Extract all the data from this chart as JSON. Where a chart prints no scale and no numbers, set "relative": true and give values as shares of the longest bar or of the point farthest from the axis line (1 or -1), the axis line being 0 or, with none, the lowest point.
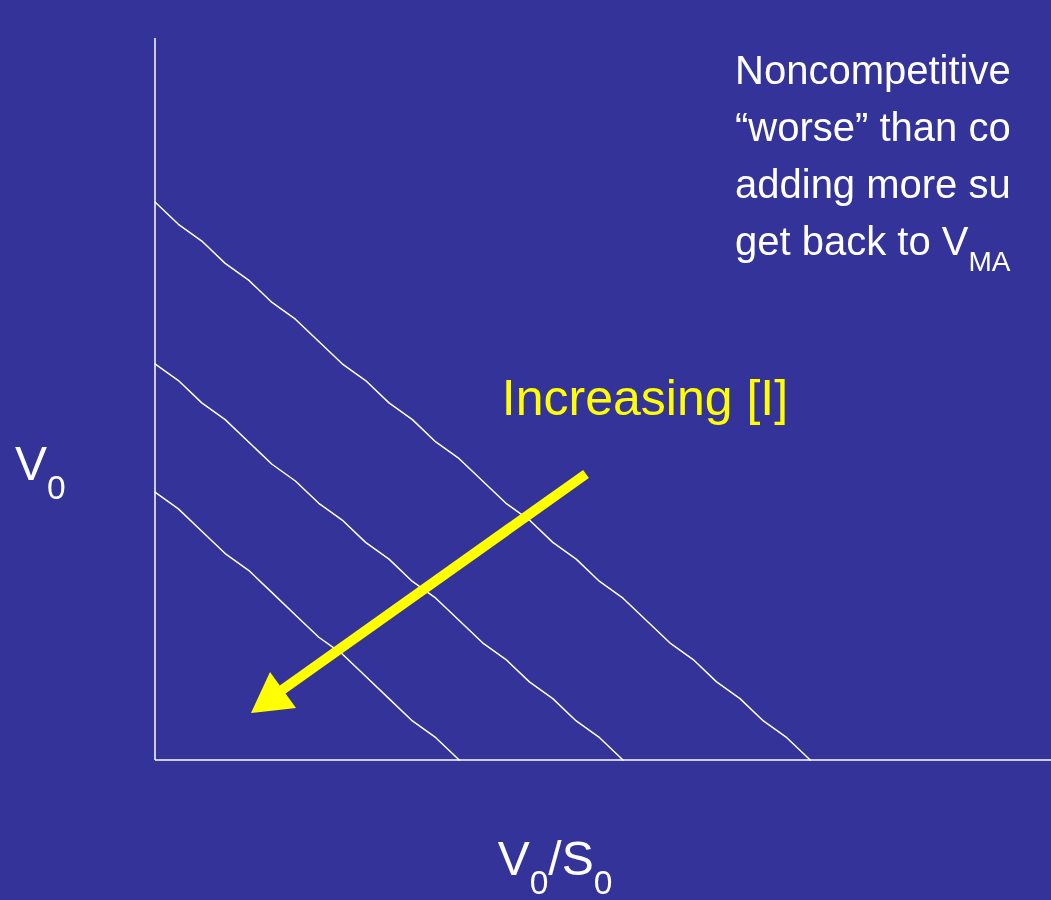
{
  "chart_data": {
    "type": "line",
    "relative": true,
    "xlabel": "V$_{0}$/S$_{0}$",
    "ylabel": "V$_{0}$",
    "categories": [
      null,
      null,
      null,
      null,
      null,
      null,
      null,
      null,
      null,
      null,
      null,
      null,
      null,
      null,
      null,
      null,
      null,
      null,
      null,
      null,
      null,
      null,
      null,
      null,
      null,
      null,
      null,
      null,
      null,
      null,
      null,
      null,
      null,
      null,
      null,
      null,
      null,
      null,
      null
    ],
    "series": [
      {
        "color": "#ffffff",
        "values": [
          1,
          0.96,
          0.93,
          0.89,
          0.86,
          0.82,
          0.79,
          0.75,
          0.71,
          0.68,
          0.64,
          0.61,
          0.57,
          0.54,
          0.5,
          0.46,
          0.43,
          0.39,
          0.36,
          0.32,
          0.29,
          0.25,
          0.21,
          0.18,
          0.14,
          0.11,
          0.07,
          0.04,
          0,
          null,
          null,
          null,
          null,
          null,
          null,
          null,
          null,
          null,
          null
        ]
      },
      {
        "color": "#ffffff",
        "values": [
          0.71,
          0.68,
          0.64,
          0.61,
          0.57,
          0.53,
          0.5,
          0.46,
          0.43,
          0.39,
          0.36,
          0.32,
          0.29,
          0.25,
          0.21,
          0.18,
          0.14,
          0.11,
          0.07,
          0.04,
          0,
          null,
          null,
          null,
          null,
          null,
          null,
          null,
          null,
          null,
          null,
          null,
          null,
          null,
          null,
          null,
          null,
          null,
          null
        ]
      },
      {
        "color": "#ffffff",
        "values": [
          0.48,
          0.45,
          0.41,
          0.37,
          0.34,
          0.3,
          0.26,
          0.22,
          0.19,
          0.15,
          0.11,
          0.07,
          0.04,
          0,
          null,
          null,
          null,
          null,
          null,
          null,
          null,
          null,
          null,
          null,
          null,
          null,
          null,
          null,
          null,
          null,
          null,
          null,
          null,
          null,
          null,
          null,
          null,
          null,
          null
        ]
      }
    ],
    "annotations": [
      "Increasing [I]",
      "Noncompetitive",
      "“worse” than co",
      "adding more su",
      "get back to V$_{MA}$"
    ],
    "marker": "none",
    "line_style": "solid"
  }
}
